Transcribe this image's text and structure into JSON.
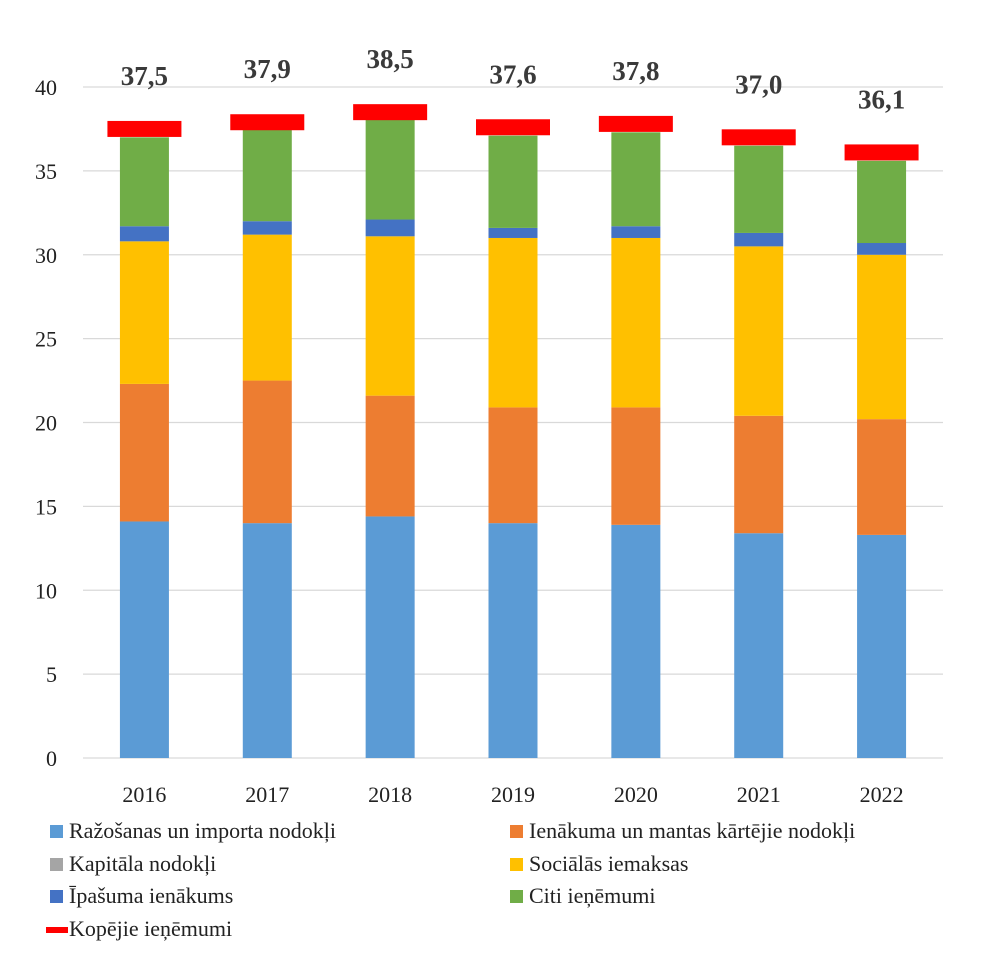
{
  "chart_data": {
    "type": "bar",
    "stacked": true,
    "categories": [
      "2016",
      "2017",
      "2018",
      "2019",
      "2020",
      "2021",
      "2022"
    ],
    "ylim": [
      0,
      40
    ],
    "yticks": [
      0,
      5,
      10,
      15,
      20,
      25,
      30,
      35,
      40
    ],
    "ytick_labels": [
      "0",
      "5",
      "10",
      "15",
      "20",
      "25",
      "30",
      "35",
      "40"
    ],
    "grid": true,
    "legend_position": "bottom",
    "series": [
      {
        "name": "Ražošanas un importa nodokļi",
        "color": "#5b9bd5",
        "values": [
          14.1,
          14.0,
          14.4,
          14.0,
          13.9,
          13.4,
          13.3
        ]
      },
      {
        "name": "Ienākuma un mantas kārtējie nodokļi",
        "color": "#ed7d31",
        "values": [
          8.2,
          8.5,
          7.2,
          6.9,
          7.0,
          7.0,
          6.9
        ]
      },
      {
        "name": "Kapitāla nodokļi",
        "color": "#a5a5a5",
        "values": [
          0,
          0,
          0,
          0,
          0,
          0,
          0
        ]
      },
      {
        "name": "Sociālās iemaksas",
        "color": "#ffc000",
        "values": [
          8.5,
          8.7,
          9.5,
          10.1,
          10.1,
          10.1,
          9.8
        ]
      },
      {
        "name": "Īpašuma ienākums",
        "color": "#4472c4",
        "values": [
          0.9,
          0.8,
          1.0,
          0.6,
          0.7,
          0.8,
          0.7
        ]
      },
      {
        "name": "Citi ieņēmumi",
        "color": "#70ad47",
        "values": [
          5.3,
          5.5,
          6.0,
          5.5,
          5.6,
          5.2,
          4.9
        ]
      }
    ],
    "totals": {
      "name": "Kopējie ieņēmumi",
      "color": "#ff0000",
      "values": [
        37.5,
        37.9,
        38.5,
        37.6,
        37.8,
        37.0,
        36.1
      ],
      "labels": [
        "37,5",
        "37,9",
        "38,5",
        "37,6",
        "37,8",
        "37,0",
        "36,1"
      ]
    },
    "legend": [
      {
        "name": "Ražošanas un importa nodokļi",
        "color": "#5b9bd5",
        "marker": "square"
      },
      {
        "name": "Ienākuma un mantas kārtējie nodokļi",
        "color": "#ed7d31",
        "marker": "square"
      },
      {
        "name": "Kapitāla nodokļi",
        "color": "#a5a5a5",
        "marker": "square"
      },
      {
        "name": "Sociālās iemaksas",
        "color": "#ffc000",
        "marker": "square"
      },
      {
        "name": "Īpašuma ienākums",
        "color": "#4472c4",
        "marker": "square"
      },
      {
        "name": "Citi ieņēmumi",
        "color": "#70ad47",
        "marker": "square"
      },
      {
        "name": "Kopējie ieņēmumi",
        "color": "#ff0000",
        "marker": "line"
      }
    ]
  }
}
